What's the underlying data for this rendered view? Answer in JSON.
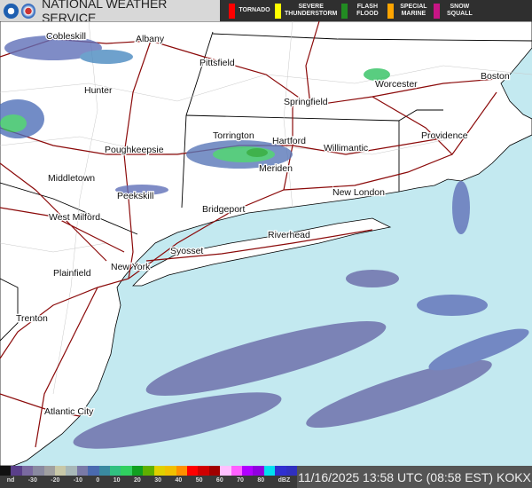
{
  "header": {
    "title": "NATIONAL WEATHER SERVICE",
    "logos": [
      "noaa-logo",
      "nws-logo"
    ]
  },
  "warnings": [
    {
      "label": "TORNADO",
      "color": "#ff0000"
    },
    {
      "label": "SEVERE\nTHUNDERSTORM",
      "color": "#ffff00"
    },
    {
      "label": "FLASH\nFLOOD",
      "color": "#228b22"
    },
    {
      "label": "SPECIAL\nMARINE",
      "color": "#ffa500"
    },
    {
      "label": "SNOW\nSQUALL",
      "color": "#c71585"
    }
  ],
  "legend": {
    "ticks": [
      "nd",
      "-30",
      "-20",
      "-10",
      "0",
      "10",
      "20",
      "30",
      "40",
      "50",
      "60",
      "70",
      "80",
      "dBZ"
    ],
    "colors": [
      "#111",
      "#5a3f8a",
      "#7a6aa0",
      "#8a8aa0",
      "#a0a0a0",
      "#c8c8a8",
      "#a8b8b8",
      "#7a7aa8",
      "#4a6ab0",
      "#3a8aa0",
      "#30c080",
      "#30d060",
      "#10a020",
      "#60b000",
      "#e0d000",
      "#f0c000",
      "#ff9000",
      "#ff0000",
      "#d00000",
      "#a00000",
      "#ffc0ff",
      "#ff60ff",
      "#b000ff",
      "#9000e0",
      "#00e0f0",
      "#3030d0",
      "#3030c0"
    ]
  },
  "timestamp": "11/16/2025 13:58 UTC (08:58 EST) KOKX",
  "colors": {
    "water": "#c3e9f0",
    "land": "#ffffff",
    "roads": "#8b0a0a",
    "borders": "#000000"
  },
  "cities": [
    {
      "name": "Cobleskill"
    },
    {
      "name": "Albany"
    },
    {
      "name": "Pittsfield"
    },
    {
      "name": "Hunter"
    },
    {
      "name": "Springfield"
    },
    {
      "name": "Worcester"
    },
    {
      "name": "Boston"
    },
    {
      "name": "Torrington"
    },
    {
      "name": "Hartford"
    },
    {
      "name": "Providence"
    },
    {
      "name": "Poughkeepsie"
    },
    {
      "name": "Willimantic"
    },
    {
      "name": "Meriden"
    },
    {
      "name": "Middletown"
    },
    {
      "name": "New London"
    },
    {
      "name": "Peekskill"
    },
    {
      "name": "Bridgeport"
    },
    {
      "name": "West Milford"
    },
    {
      "name": "Riverhead"
    },
    {
      "name": "Syosset"
    },
    {
      "name": "New York"
    },
    {
      "name": "Plainfield"
    },
    {
      "name": "Trenton"
    },
    {
      "name": "Atlantic City"
    }
  ]
}
